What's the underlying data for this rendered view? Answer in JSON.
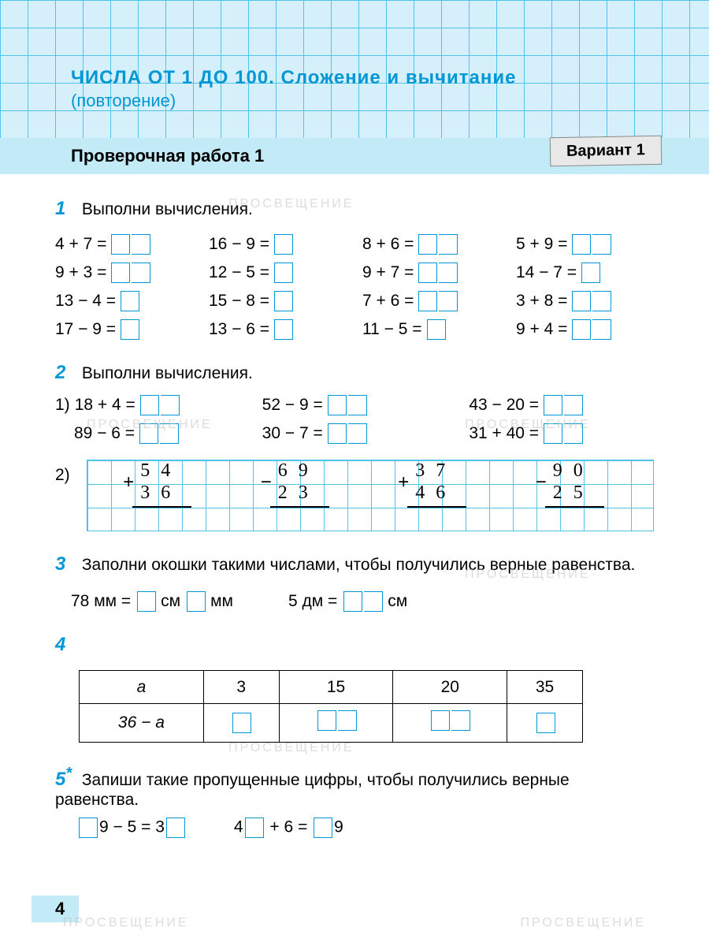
{
  "header": {
    "chapter_title": "ЧИСЛА ОТ 1 ДО 100. Сложение и вычитание",
    "chapter_sub": "(повторение)",
    "work_title": "Проверочная работа 1",
    "variant": "Вариант 1"
  },
  "task1": {
    "num": "1",
    "title": "Выполни вычисления.",
    "rows": [
      [
        "4 + 7 =",
        "16 − 9 =",
        "8 + 6 =",
        "5 + 9 ="
      ],
      [
        "9 + 3 =",
        "12 − 5 =",
        "9 + 7 =",
        "14 − 7 ="
      ],
      [
        "13 − 4 =",
        "15 − 8 =",
        "7 + 6 =",
        "3 + 8 ="
      ],
      [
        "17 − 9 =",
        "13 − 6 =",
        "11 − 5 =",
        "9 + 4 ="
      ]
    ],
    "box_counts": [
      [
        2,
        1,
        2,
        2
      ],
      [
        2,
        1,
        2,
        1
      ],
      [
        1,
        1,
        2,
        2
      ],
      [
        1,
        1,
        1,
        2
      ]
    ]
  },
  "task2": {
    "num": "2",
    "title": "Выполни вычисления.",
    "part1_label": "1)",
    "part1_rows": [
      [
        "18 + 4 =",
        "52 − 9 =",
        "43 − 20 ="
      ],
      [
        "89 − 6 =",
        "30 − 7 =",
        "31 + 40 ="
      ]
    ],
    "part2_label": "2)",
    "columns": [
      {
        "sign": "+",
        "a": "54",
        "b": "36"
      },
      {
        "sign": "−",
        "a": "69",
        "b": "23"
      },
      {
        "sign": "+",
        "a": "37",
        "b": "46"
      },
      {
        "sign": "−",
        "a": "90",
        "b": "25"
      }
    ]
  },
  "task3": {
    "num": "3",
    "title": "Заполни окошки такими числами, чтобы получились верные равенства.",
    "eq1_left": "78 мм =",
    "eq1_mid": "см",
    "eq1_right": "мм",
    "eq2_left": "5 дм =",
    "eq2_right": "см"
  },
  "task4": {
    "num": "4",
    "row1_label": "a",
    "row1": [
      "3",
      "15",
      "20",
      "35"
    ],
    "row2_label": "36 − a"
  },
  "task5": {
    "num": "5",
    "star": "*",
    "title": "Запиши такие пропущенные цифры, чтобы получились верные равенства.",
    "eq1_p1": "9 − 5 = 3",
    "eq2_p1": "4",
    "eq2_p2": " + 6 = ",
    "eq2_p3": "9"
  },
  "page_number": "4",
  "watermark_text": "ПРОСВЕЩЕНИЕ"
}
